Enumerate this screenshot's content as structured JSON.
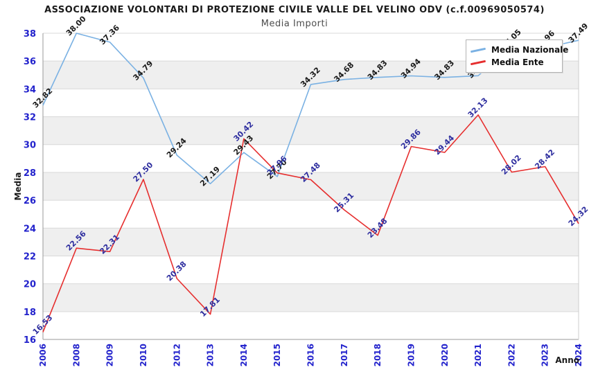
{
  "title": "ASSOCIAZIONE VOLONTARI DI PROTEZIONE CIVILE VALLE DEL VELINO ODV (c.f.00969050574)",
  "subtitle": "Media Importi",
  "legend": {
    "items": [
      {
        "label": "Media Nazionale",
        "color": "#7ab1e3"
      },
      {
        "label": "Media Ente",
        "color": "#e62e2e"
      }
    ]
  },
  "axes": {
    "y_label": "Media",
    "x_label": "Anno",
    "y_tick_color": "#2222cc",
    "x_tick_color": "#2222cc"
  },
  "colors": {
    "band_fill": "#efefef",
    "gridline": "#d9d9d9",
    "axis_line": "#999999",
    "plot_border": "#cccccc",
    "label_nazionale": "#1a1a1a",
    "label_ente": "#2e2e9f"
  },
  "chart_data": {
    "type": "line",
    "title": "ASSOCIAZIONE VOLONTARI DI PROTEZIONE CIVILE VALLE DEL VELINO ODV (c.f.00969050574)",
    "subtitle": "Media Importi",
    "xlabel": "Anno",
    "ylabel": "Media",
    "ylim": [
      16,
      38
    ],
    "y_tick_step": 2,
    "grid": true,
    "alternating_bands": true,
    "legend_position": "top-right",
    "categories": [
      "2006",
      "2008",
      "2009",
      "2010",
      "2012",
      "2013",
      "2014",
      "2015",
      "2016",
      "2017",
      "2018",
      "2019",
      "2020",
      "2021",
      "2022",
      "2023",
      "2024"
    ],
    "series": [
      {
        "name": "Media Nazionale",
        "color": "#7ab1e3",
        "label_color": "#1a1a1a",
        "values": [
          32.82,
          38.0,
          37.36,
          34.79,
          29.24,
          27.19,
          29.43,
          27.7,
          34.32,
          34.68,
          34.83,
          34.94,
          34.83,
          34.95,
          37.05,
          36.96,
          37.49
        ]
      },
      {
        "name": "Media Ente",
        "color": "#e62e2e",
        "label_color": "#2e2e9f",
        "values": [
          16.53,
          22.56,
          22.31,
          27.5,
          20.38,
          17.81,
          30.42,
          27.96,
          27.48,
          25.31,
          23.48,
          29.86,
          29.44,
          32.13,
          28.02,
          28.42,
          24.32
        ]
      }
    ]
  }
}
